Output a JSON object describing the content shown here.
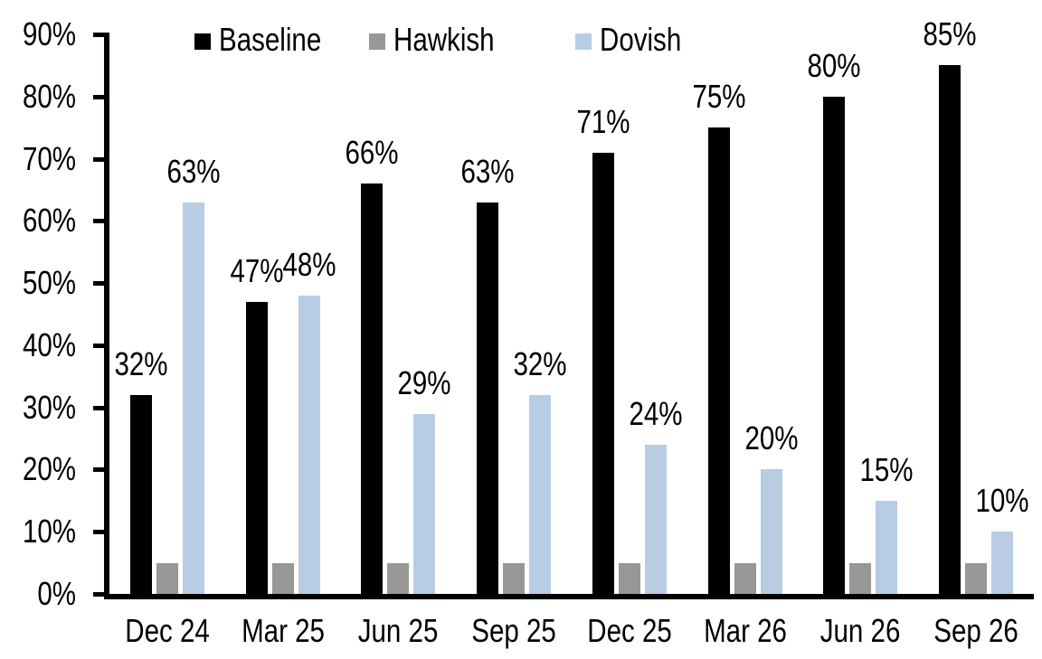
{
  "chart_data": {
    "type": "bar",
    "title": "",
    "categories": [
      "Dec 24",
      "Mar 25",
      "Jun 25",
      "Sep 25",
      "Dec 25",
      "Mar 26",
      "Jun 26",
      "Sep 26"
    ],
    "series": [
      {
        "name": "Baseline",
        "color": "#000000",
        "values": [
          32,
          47,
          66,
          63,
          71,
          75,
          80,
          85
        ],
        "labels": [
          "32%",
          "47%",
          "66%",
          "63%",
          "71%",
          "75%",
          "80%",
          "85%"
        ],
        "show_data_labels": true
      },
      {
        "name": "Hawkish",
        "color": "#979797",
        "values": [
          5,
          5,
          5,
          5,
          5,
          5,
          5,
          5
        ],
        "labels": [],
        "show_data_labels": false
      },
      {
        "name": "Dovish",
        "color": "#b8cce4",
        "values": [
          63,
          48,
          29,
          32,
          24,
          20,
          15,
          10
        ],
        "labels": [
          "63%",
          "48%",
          "29%",
          "32%",
          "24%",
          "20%",
          "15%",
          "10%"
        ],
        "show_data_labels": true
      }
    ],
    "xlabel": "",
    "ylabel": "",
    "ylim": [
      0,
      90
    ],
    "yticks": [
      "0%",
      "10%",
      "20%",
      "30%",
      "40%",
      "50%",
      "60%",
      "70%",
      "80%",
      "90%"
    ],
    "legend_position": "top",
    "grid": false,
    "axis_color": "#000000",
    "background_color": "#ffffff"
  }
}
